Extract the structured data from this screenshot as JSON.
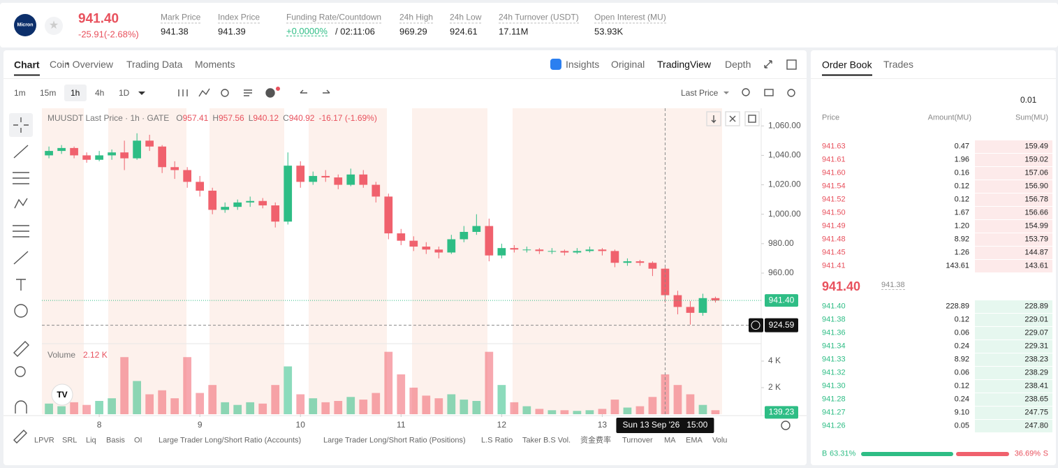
{
  "header": {
    "logo": "Micron",
    "price": "941.40",
    "change": "-25.91(-2.68%)",
    "stats": [
      {
        "label": "Mark Price",
        "value": "941.38"
      },
      {
        "label": "Index Price",
        "value": "941.39"
      },
      {
        "label": "Funding Rate/Countdown",
        "value": "+0.0000%",
        "extra": "/ 02:11:06"
      },
      {
        "label": "24h High",
        "value": "969.29"
      },
      {
        "label": "24h Low",
        "value": "924.61"
      },
      {
        "label": "24h Turnover (USDT)",
        "value": "17.11M"
      },
      {
        "label": "Open Interest (MU)",
        "value": "53.93K"
      }
    ]
  },
  "tabs": {
    "left": [
      "Chart",
      "Coin Overview",
      "Trading Data",
      "Moments"
    ],
    "right": [
      "Insights",
      "Original",
      "TradingView",
      "Depth"
    ]
  },
  "toolbar": {
    "intervals": [
      "1m",
      "15m",
      "1h",
      "4h",
      "1D"
    ],
    "price_type": "Last Price"
  },
  "indicators": [
    "LPVR",
    "SRL",
    "Liq",
    "Basis",
    "OI",
    "Large Trader Long/Short Ratio (Accounts)",
    "Large Trader Long/Short Ratio (Positions)",
    "L.S Ratio",
    "Taker B.S Vol.",
    "资金费率",
    "Turnover",
    "MA",
    "EMA",
    "Volu"
  ],
  "chart_data": {
    "type": "candlestick",
    "title": "MUUSDT Last Price · 1h · GATE",
    "ohlc_legend": [
      {
        "label": "O",
        "value": "957.41"
      },
      {
        "label": "H",
        "value": "957.56"
      },
      {
        "label": "L",
        "value": "940.12"
      },
      {
        "label": "C",
        "value": "940.92"
      }
    ],
    "legend_change": "-16.17 (-1.69%)",
    "up_color": "#2ebd85",
    "down_color": "#f0616d",
    "x": [
      7.5,
      7.625,
      7.75,
      7.875,
      8,
      8.125,
      8.25,
      8.375,
      8.5,
      8.625,
      8.75,
      8.875,
      9,
      9.125,
      9.25,
      9.375,
      9.5,
      9.625,
      9.75,
      9.875,
      10,
      10.125,
      10.25,
      10.375,
      10.5,
      10.625,
      10.75,
      10.875,
      11,
      11.125,
      11.25,
      11.375,
      11.5,
      11.625,
      11.75,
      11.875,
      12,
      12.125,
      12.25,
      12.375,
      12.5,
      12.625,
      12.75,
      12.875,
      13,
      13.125,
      13.25,
      13.375,
      13.5,
      13.625,
      13.75,
      13.875,
      14,
      14.125
    ],
    "candles": [
      [
        1040,
        1046,
        1038,
        1043
      ],
      [
        1043,
        1047,
        1041,
        1045
      ],
      [
        1045,
        1046,
        1038,
        1040
      ],
      [
        1040,
        1042,
        1035,
        1037
      ],
      [
        1037,
        1043,
        1036,
        1040
      ],
      [
        1040,
        1044,
        1037,
        1042
      ],
      [
        1042,
        1050,
        1030,
        1038
      ],
      [
        1038,
        1055,
        1037,
        1050
      ],
      [
        1050,
        1054,
        1043,
        1046
      ],
      [
        1046,
        1047,
        1028,
        1032
      ],
      [
        1032,
        1036,
        1024,
        1030
      ],
      [
        1030,
        1032,
        1018,
        1022
      ],
      [
        1022,
        1026,
        1012,
        1016
      ],
      [
        1016,
        1018,
        1000,
        1003
      ],
      [
        1003,
        1008,
        1001,
        1005
      ],
      [
        1005,
        1010,
        1003,
        1008
      ],
      [
        1008,
        1012,
        1005,
        1009
      ],
      [
        1009,
        1011,
        1004,
        1006
      ],
      [
        1006,
        1008,
        991,
        995
      ],
      [
        995,
        1042,
        993,
        1033
      ],
      [
        1033,
        1036,
        1018,
        1022
      ],
      [
        1022,
        1029,
        1020,
        1026
      ],
      [
        1026,
        1030,
        1022,
        1025
      ],
      [
        1025,
        1027,
        1017,
        1020
      ],
      [
        1020,
        1031,
        1019,
        1027
      ],
      [
        1027,
        1030,
        1018,
        1020
      ],
      [
        1020,
        1022,
        1008,
        1012
      ],
      [
        1012,
        1014,
        983,
        987
      ],
      [
        987,
        990,
        979,
        982
      ],
      [
        982,
        985,
        975,
        978
      ],
      [
        978,
        981,
        973,
        976
      ],
      [
        976,
        978,
        970,
        974
      ],
      [
        974,
        986,
        973,
        983
      ],
      [
        983,
        992,
        981,
        988
      ],
      [
        988,
        1000,
        986,
        992
      ],
      [
        992,
        997,
        968,
        972
      ],
      [
        972,
        980,
        970,
        977
      ],
      [
        977,
        979,
        974,
        976
      ],
      [
        976,
        978,
        974,
        976
      ],
      [
        976,
        977,
        973,
        975
      ],
      [
        975,
        977,
        973,
        975
      ],
      [
        975,
        976,
        972,
        974
      ],
      [
        974,
        977,
        973,
        975
      ],
      [
        975,
        978,
        974,
        976
      ],
      [
        976,
        977,
        972,
        975
      ],
      [
        975,
        976,
        964,
        967
      ],
      [
        967,
        970,
        965,
        968
      ],
      [
        968,
        969,
        965,
        967
      ],
      [
        967,
        968,
        958,
        963
      ],
      [
        963,
        964,
        940,
        945
      ],
      [
        945,
        948,
        932,
        937
      ],
      [
        937,
        941,
        925,
        933
      ],
      [
        933,
        946,
        931,
        943
      ],
      [
        943,
        944,
        940,
        941.4
      ]
    ],
    "volumes": [
      800,
      600,
      900,
      700,
      1000,
      1200,
      4300,
      2500,
      1500,
      1800,
      1200,
      4300,
      1600,
      2200,
      900,
      700,
      900,
      800,
      2200,
      3600,
      1500,
      1200,
      900,
      1000,
      1300,
      1100,
      1600,
      4700,
      3000,
      2000,
      1400,
      1200,
      1500,
      1100,
      1000,
      4700,
      2200,
      900,
      600,
      400,
      300,
      300,
      250,
      300,
      400,
      1100,
      500,
      600,
      1300,
      3000,
      2200,
      1500,
      700,
      300
    ],
    "xlim": [
      7.43,
      14.58
    ],
    "xticks": [
      8,
      9,
      10,
      11,
      12,
      13
    ],
    "ylim": [
      913,
      1072
    ],
    "yticks": [
      {
        "value": 960,
        "label": "960.00"
      },
      {
        "value": 980,
        "label": "980.00"
      },
      {
        "value": 1000,
        "label": "1,000.00"
      },
      {
        "value": 1020,
        "label": "1,020.00"
      },
      {
        "value": 1040,
        "label": "1,040.00"
      },
      {
        "value": 1060,
        "label": "1,060.00"
      }
    ],
    "grid": false,
    "last_price": {
      "value": 941.4,
      "label": "941.40"
    },
    "crosshair": {
      "x": 13.625,
      "time_label": "Sun 13 Sep '26   15:00",
      "price": {
        "value": 924.59,
        "label": "924.59"
      }
    },
    "volume_title": "Volume",
    "volume_value": {
      "value": 2120,
      "label": "2.12 K"
    },
    "vlim": [
      0,
      5260
    ],
    "vticks": [
      {
        "value": 2000,
        "label": "2 K"
      },
      {
        "value": 4000,
        "label": "4 K"
      }
    ],
    "last_volume": {
      "value": 139.23,
      "label": "139.23"
    }
  },
  "order_book": {
    "tabs": [
      "Order Book",
      "Trades"
    ],
    "precision": "0.01",
    "columns": [
      "Price",
      "Amount(MU)",
      "Sum(MU)"
    ],
    "asks": [
      [
        "941.63",
        "0.47",
        "159.49"
      ],
      [
        "941.61",
        "1.96",
        "159.02"
      ],
      [
        "941.60",
        "0.16",
        "157.06"
      ],
      [
        "941.54",
        "0.12",
        "156.90"
      ],
      [
        "941.52",
        "0.12",
        "156.78"
      ],
      [
        "941.50",
        "1.67",
        "156.66"
      ],
      [
        "941.49",
        "1.20",
        "154.99"
      ],
      [
        "941.48",
        "8.92",
        "153.79"
      ],
      [
        "941.45",
        "1.26",
        "144.87"
      ],
      [
        "941.41",
        "143.61",
        "143.61"
      ]
    ],
    "last": "941.40",
    "mark": "941.38",
    "bids": [
      [
        "941.40",
        "228.89",
        "228.89"
      ],
      [
        "941.38",
        "0.12",
        "229.01"
      ],
      [
        "941.36",
        "0.06",
        "229.07"
      ],
      [
        "941.34",
        "0.24",
        "229.31"
      ],
      [
        "941.33",
        "8.92",
        "238.23"
      ],
      [
        "941.32",
        "0.06",
        "238.29"
      ],
      [
        "941.30",
        "0.12",
        "238.41"
      ],
      [
        "941.28",
        "0.24",
        "238.65"
      ],
      [
        "941.27",
        "9.10",
        "247.75"
      ],
      [
        "941.26",
        "0.05",
        "247.80"
      ]
    ],
    "ratio": {
      "buy_label": "B",
      "sell_label": "S",
      "values": [
        63.31,
        36.69
      ],
      "value_labels": [
        "63.31%",
        "36.69%"
      ]
    }
  }
}
